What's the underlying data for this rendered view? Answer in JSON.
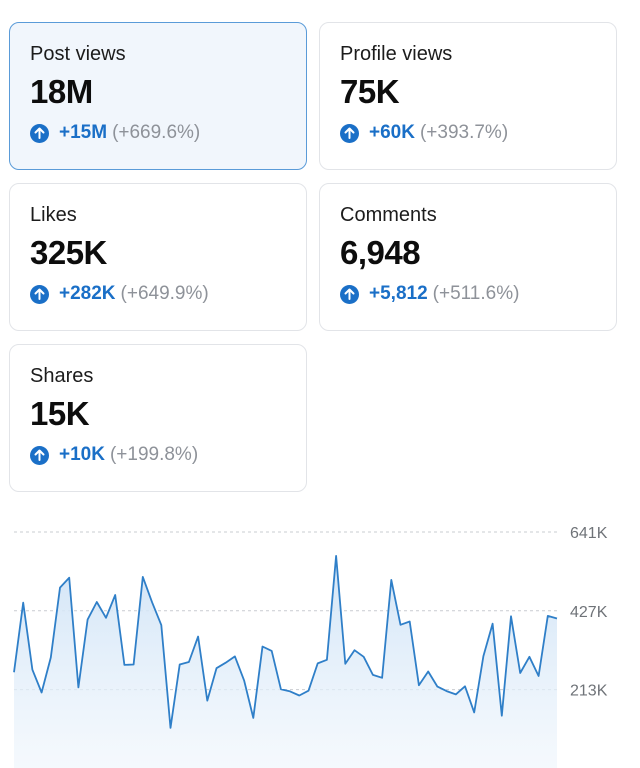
{
  "metrics": [
    {
      "title": "Post views",
      "value": "18M",
      "change": "+15M",
      "pct": "(+669.6%)",
      "selected": true
    },
    {
      "title": "Profile views",
      "value": "75K",
      "change": "+60K",
      "pct": "(+393.7%)",
      "selected": false
    },
    {
      "title": "Likes",
      "value": "325K",
      "change": "+282K",
      "pct": "(+649.9%)",
      "selected": false
    },
    {
      "title": "Comments",
      "value": "6,948",
      "change": "+5,812",
      "pct": "(+511.6%)",
      "selected": false
    },
    {
      "title": "Shares",
      "value": "15K",
      "change": "+10K",
      "pct": "(+199.8%)",
      "selected": false
    }
  ],
  "colors": {
    "accent": "#1a6fc7",
    "line": "#2f7fc8",
    "fill": "#d6e7f7",
    "selected_border": "#5a9bd8",
    "selected_bg": "#f1f6fc"
  },
  "icons": {
    "change_indicator": "arrow-up-circle-icon"
  },
  "chart_data": {
    "type": "area",
    "series": [
      {
        "values": [
          260,
          449,
          267,
          205,
          300,
          490,
          517,
          219,
          403,
          451,
          408,
          470,
          280,
          281,
          519,
          450,
          388,
          109,
          281,
          288,
          357,
          183,
          271,
          286,
          303,
          238,
          136,
          330,
          318,
          214,
          208,
          197,
          210,
          284,
          294,
          576,
          283,
          320,
          302,
          253,
          245,
          511,
          389,
          398,
          225,
          262,
          221,
          209,
          200,
          222,
          151,
          304,
          392,
          142,
          412,
          258,
          302,
          250,
          413,
          406
        ]
      }
    ],
    "y_ticks": [
      {
        "value": 641000,
        "label": "641K"
      },
      {
        "value": 427000,
        "label": "427K"
      },
      {
        "value": 213000,
        "label": "213K"
      }
    ],
    "y_unit": 1000,
    "ylim": [
      0,
      680
    ],
    "grid": true,
    "axis_labels_position": "right"
  }
}
